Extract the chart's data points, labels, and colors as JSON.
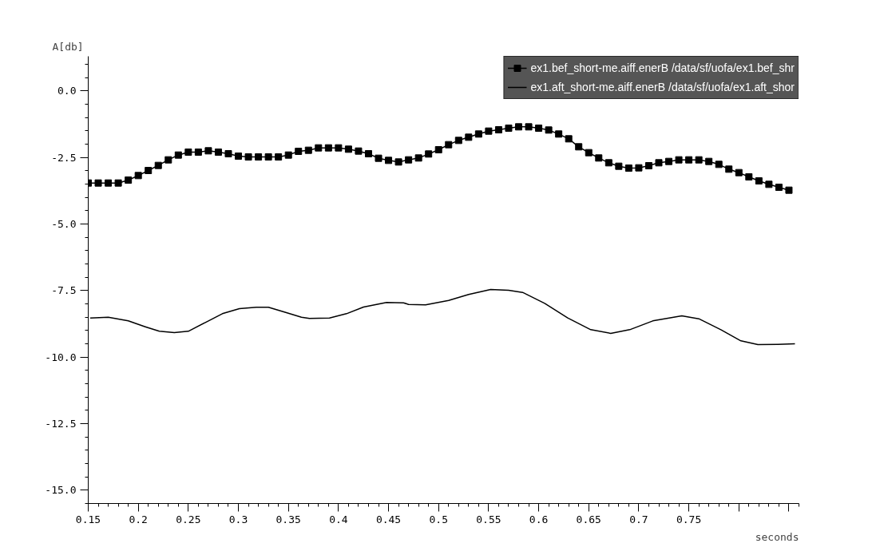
{
  "chart_data": {
    "type": "line",
    "xlabel": "seconds",
    "ylabel": "A[db]",
    "xlim": [
      0.15,
      0.86
    ],
    "ylim": [
      -15.5,
      1.3
    ],
    "xticks": [
      0.15,
      0.2,
      0.25,
      0.3,
      0.35,
      0.4,
      0.45,
      0.5,
      0.55,
      0.6,
      0.65,
      0.7,
      0.75,
      {
        "value": 0.8,
        "label": null
      },
      {
        "value": 0.85,
        "label": null
      }
    ],
    "yticks": [
      {
        "value": 0,
        "label": "0.0"
      },
      {
        "value": -2.5,
        "label": "-2.5"
      },
      {
        "value": -5,
        "label": "-5.0"
      },
      {
        "value": -7.5,
        "label": "-7.5"
      },
      {
        "value": -10,
        "label": "-10.0"
      },
      {
        "value": -12.5,
        "label": "-12.5"
      },
      {
        "value": -15,
        "label": "-15.0"
      }
    ],
    "grid": false,
    "legend": "top right",
    "series": [
      {
        "name": "ex1.bef_short-me.aiff.enerB /data/sf/uofa/ex1.bef_shr",
        "color": "#000000",
        "marker": "square",
        "x": [
          0.15,
          0.16,
          0.17,
          0.18,
          0.19,
          0.2,
          0.21,
          0.22,
          0.23,
          0.24,
          0.25,
          0.26,
          0.27,
          0.28,
          0.29,
          0.3,
          0.31,
          0.32,
          0.33,
          0.34,
          0.35,
          0.36,
          0.37,
          0.38,
          0.39,
          0.4,
          0.41,
          0.42,
          0.43,
          0.44,
          0.45,
          0.46,
          0.47,
          0.48,
          0.49,
          0.5,
          0.51,
          0.52,
          0.53,
          0.54,
          0.55,
          0.56,
          0.57,
          0.58,
          0.59,
          0.6,
          0.61,
          0.62,
          0.63,
          0.64,
          0.65,
          0.66,
          0.67,
          0.68,
          0.69,
          0.7,
          0.71,
          0.72,
          0.73,
          0.74,
          0.75,
          0.76,
          0.77,
          0.78,
          0.79,
          0.8,
          0.81,
          0.82,
          0.83,
          0.84,
          0.85
        ],
        "values": [
          -3.46,
          -3.46,
          -3.46,
          -3.46,
          -3.35,
          -3.18,
          -2.99,
          -2.8,
          -2.59,
          -2.41,
          -2.3,
          -2.3,
          -2.25,
          -2.3,
          -2.36,
          -2.45,
          -2.48,
          -2.48,
          -2.48,
          -2.48,
          -2.41,
          -2.27,
          -2.23,
          -2.14,
          -2.14,
          -2.14,
          -2.19,
          -2.26,
          -2.36,
          -2.53,
          -2.61,
          -2.67,
          -2.59,
          -2.52,
          -2.37,
          -2.21,
          -2.02,
          -1.86,
          -1.74,
          -1.62,
          -1.51,
          -1.46,
          -1.4,
          -1.35,
          -1.35,
          -1.4,
          -1.47,
          -1.62,
          -1.8,
          -2.1,
          -2.32,
          -2.52,
          -2.7,
          -2.83,
          -2.9,
          -2.89,
          -2.81,
          -2.7,
          -2.65,
          -2.59,
          -2.59,
          -2.59,
          -2.65,
          -2.76,
          -2.94,
          -3.07,
          -3.23,
          -3.38,
          -3.51,
          -3.62,
          -3.73
        ]
      },
      {
        "name": "ex1.aft_short-me.aiff.enerB /data/sf/uofa/ex1.aft_shor",
        "color": "#000000",
        "marker": "none",
        "x": [
          0.152,
          0.17,
          0.19,
          0.207,
          0.221,
          0.236,
          0.25,
          0.267,
          0.284,
          0.301,
          0.318,
          0.33,
          0.346,
          0.363,
          0.371,
          0.391,
          0.408,
          0.425,
          0.448,
          0.465,
          0.47,
          0.487,
          0.51,
          0.53,
          0.552,
          0.57,
          0.584,
          0.606,
          0.629,
          0.652,
          0.672,
          0.691,
          0.714,
          0.743,
          0.76,
          0.782,
          0.802,
          0.819,
          0.839,
          0.856
        ],
        "values": [
          -8.53,
          -8.5,
          -8.64,
          -8.86,
          -9.03,
          -9.08,
          -9.03,
          -8.7,
          -8.37,
          -8.18,
          -8.13,
          -8.13,
          -8.31,
          -8.5,
          -8.55,
          -8.53,
          -8.37,
          -8.12,
          -7.95,
          -7.96,
          -8.02,
          -8.04,
          -7.87,
          -7.65,
          -7.46,
          -7.49,
          -7.57,
          -7.98,
          -8.53,
          -8.97,
          -9.11,
          -8.97,
          -8.64,
          -8.45,
          -8.56,
          -8.97,
          -9.39,
          -9.53,
          -9.52,
          -9.5
        ]
      }
    ]
  }
}
